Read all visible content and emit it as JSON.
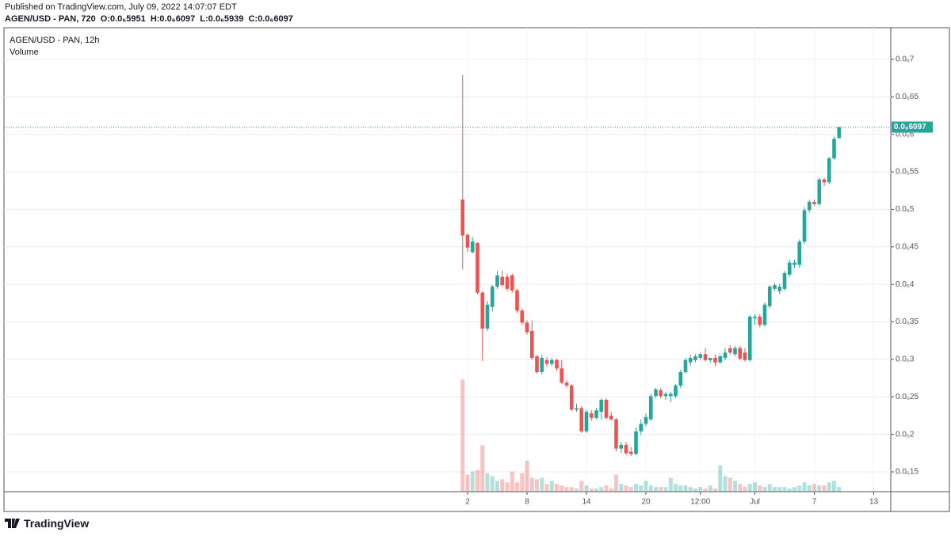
{
  "header": {
    "published": "Published on TradingView.com, July 09, 2022 14:07:07 EDT",
    "symbol": "AGEN/USD - PAN, 720",
    "ohlc": [
      "O:0.0₆5951",
      "H:0.0₆6097",
      "L:0.0₆5939",
      "C:0.0₆6097"
    ]
  },
  "footer": {
    "brand": "TradingView"
  },
  "chart_data": {
    "type": "candlestick",
    "title": "AGEN/USD - PAN, 12h",
    "x": [
      1.5,
      2,
      2.5,
      3,
      3.5,
      4,
      4.5,
      5,
      5.5,
      6,
      6.5,
      7,
      7.5,
      8,
      8.5,
      9,
      9.5,
      10,
      10.5,
      11,
      11.5,
      12,
      12.5,
      13,
      13.5,
      14,
      14.5,
      15,
      15.5,
      16,
      16.5,
      17,
      17.5,
      18,
      18.5,
      19,
      19.5,
      20,
      20.5,
      21,
      21.5,
      22,
      22.5,
      23,
      23.5,
      24,
      24.5,
      25,
      25.5,
      26,
      26.5,
      27,
      27.5,
      28,
      28.5,
      29,
      29.5,
      30,
      30.5,
      31,
      31.5,
      32,
      32.5,
      33,
      33.5,
      34,
      34.5,
      35,
      35.5,
      36,
      36.5,
      37,
      37.5,
      38,
      38.5,
      39,
      39.5
    ],
    "open": [
      5.13e-07,
      4.66e-07,
      4.43e-07,
      4.55e-07,
      3.89e-07,
      3.41e-07,
      3.7e-07,
      3.97e-07,
      4.1e-07,
      4.1e-07,
      4.12e-07,
      3.92e-07,
      3.65e-07,
      3.49e-07,
      3.38e-07,
      3.04e-07,
      2.83e-07,
      2.99e-07,
      2.94e-07,
      2.99e-07,
      2.88e-07,
      2.69e-07,
      2.65e-07,
      2.33e-07,
      2.35e-07,
      2.04e-07,
      2.28e-07,
      2.22e-07,
      2.3e-07,
      2.46e-07,
      2.25e-07,
      2.2e-07,
      1.81e-07,
      1.86e-07,
      1.77e-07,
      1.74e-07,
      2.04e-07,
      2.14e-07,
      2.2e-07,
      2.51e-07,
      2.59e-07,
      2.51e-07,
      2.51e-07,
      2.51e-07,
      2.65e-07,
      2.83e-07,
      2.96e-07,
      2.99e-07,
      3.02e-07,
      3.07e-07,
      2.99e-07,
      3.02e-07,
      2.96e-07,
      3.02e-07,
      3.15e-07,
      3.07e-07,
      3.15e-07,
      3.09e-07,
      2.99e-07,
      3.55e-07,
      3.57e-07,
      3.46e-07,
      3.71e-07,
      3.94e-07,
      3.91e-07,
      3.94e-07,
      4.13e-07,
      4.26e-07,
      4.26e-07,
      4.57e-07,
      4.99e-07,
      5.1e-07,
      5.07e-07,
      5.4e-07,
      5.36e-07,
      5.68e-07,
      5.951e-07
    ],
    "high": [
      6.79e-07,
      4.68e-07,
      4.63e-07,
      4.56e-07,
      3.91e-07,
      3.78e-07,
      3.99e-07,
      4.18e-07,
      4.18e-07,
      4.14e-07,
      4.14e-07,
      3.94e-07,
      3.68e-07,
      3.52e-07,
      3.52e-07,
      3.06e-07,
      3.06e-07,
      3.03e-07,
      3.02e-07,
      3.01e-07,
      2.99e-07,
      2.72e-07,
      2.67e-07,
      2.41e-07,
      2.38e-07,
      2.33e-07,
      2.32e-07,
      2.35e-07,
      2.48e-07,
      2.48e-07,
      2.3e-07,
      2.22e-07,
      1.9e-07,
      1.9e-07,
      1.83e-07,
      2.09e-07,
      2.2e-07,
      2.28e-07,
      2.54e-07,
      2.62e-07,
      2.62e-07,
      2.57e-07,
      2.57e-07,
      2.67e-07,
      2.86e-07,
      3.02e-07,
      3.06e-07,
      3.07e-07,
      3.09e-07,
      3.15e-07,
      3.02e-07,
      3.06e-07,
      3.07e-07,
      3.15e-07,
      3.19e-07,
      3.18e-07,
      3.18e-07,
      3.15e-07,
      3.59e-07,
      3.6e-07,
      3.6e-07,
      3.76e-07,
      3.99e-07,
      4.02e-07,
      4.01e-07,
      4.18e-07,
      4.33e-07,
      4.33e-07,
      4.6e-07,
      5.03e-07,
      5.13e-07,
      5.13e-07,
      5.42e-07,
      5.42e-07,
      5.7e-07,
      5.97e-07,
      6.097e-07
    ],
    "low": [
      4.2e-07,
      4.43e-07,
      4.41e-07,
      3.87e-07,
      2.98e-07,
      3.38e-07,
      3.64e-07,
      3.94e-07,
      3.97e-07,
      3.91e-07,
      3.89e-07,
      3.62e-07,
      3.46e-07,
      3.33e-07,
      2.99e-07,
      2.81e-07,
      2.8e-07,
      2.9e-07,
      2.91e-07,
      2.85e-07,
      2.67e-07,
      2.62e-07,
      2.31e-07,
      2.3e-07,
      2.02e-07,
      2.02e-07,
      2.18e-07,
      2.2e-07,
      2.2e-07,
      2.2e-07,
      2.18e-07,
      1.77e-07,
      1.75e-07,
      1.72e-07,
      1.71e-07,
      1.72e-07,
      1.99e-07,
      2.11e-07,
      2.18e-07,
      2.49e-07,
      2.48e-07,
      2.46e-07,
      2.43e-07,
      2.49e-07,
      2.62e-07,
      2.81e-07,
      2.91e-07,
      2.96e-07,
      2.99e-07,
      2.97e-07,
      2.96e-07,
      2.91e-07,
      2.94e-07,
      2.99e-07,
      3.06e-07,
      3.04e-07,
      2.99e-07,
      2.97e-07,
      2.97e-07,
      3.46e-07,
      3.43e-07,
      3.44e-07,
      3.68e-07,
      3.91e-07,
      3.87e-07,
      3.91e-07,
      4.1e-07,
      4.22e-07,
      4.22e-07,
      4.54e-07,
      4.96e-07,
      5.05e-07,
      5.05e-07,
      5.31e-07,
      5.34e-07,
      5.66e-07,
      5.939e-07
    ],
    "close": [
      4.65e-07,
      4.49e-07,
      4.57e-07,
      3.89e-07,
      3.41e-07,
      3.73e-07,
      3.97e-07,
      4.12e-07,
      3.99e-07,
      3.94e-07,
      3.92e-07,
      3.65e-07,
      3.49e-07,
      3.36e-07,
      3.02e-07,
      2.83e-07,
      3.02e-07,
      2.94e-07,
      2.99e-07,
      2.88e-07,
      2.69e-07,
      2.65e-07,
      2.33e-07,
      2.35e-07,
      2.04e-07,
      2.3e-07,
      2.22e-07,
      2.32e-07,
      2.46e-07,
      2.22e-07,
      2.2e-07,
      1.81e-07,
      1.86e-07,
      1.75e-07,
      1.74e-07,
      2.04e-07,
      2.14e-07,
      2.23e-07,
      2.51e-07,
      2.6e-07,
      2.51e-07,
      2.54e-07,
      2.54e-07,
      2.65e-07,
      2.83e-07,
      2.99e-07,
      3.02e-07,
      3.04e-07,
      3.07e-07,
      2.99e-07,
      3.02e-07,
      2.96e-07,
      3.04e-07,
      3.09e-07,
      3.09e-07,
      3.15e-07,
      3.01e-07,
      2.99e-07,
      3.57e-07,
      3.57e-07,
      3.46e-07,
      3.73e-07,
      3.97e-07,
      3.99e-07,
      3.97e-07,
      4.15e-07,
      4.29e-07,
      4.29e-07,
      4.57e-07,
      4.99e-07,
      5.1e-07,
      5.07e-07,
      5.4e-07,
      5.36e-07,
      5.68e-07,
      5.94e-07,
      6.097e-07
    ],
    "up_color": "#26a69a",
    "down_color": "#ef5350",
    "volume": {
      "name": "Volume",
      "values": [
        145,
        22,
        26,
        28,
        60,
        24,
        20,
        14,
        16,
        12,
        26,
        12,
        24,
        40,
        18,
        16,
        18,
        10,
        14,
        10,
        8,
        6,
        6,
        4,
        14,
        8,
        4,
        4,
        6,
        8,
        4,
        22,
        10,
        8,
        6,
        10,
        8,
        14,
        8,
        6,
        6,
        6,
        18,
        10,
        8,
        8,
        6,
        4,
        6,
        4,
        8,
        4,
        34,
        20,
        18,
        14,
        10,
        6,
        10,
        12,
        8,
        6,
        10,
        6,
        6,
        6,
        4,
        6,
        8,
        12,
        8,
        10,
        8,
        8,
        12,
        14,
        6
      ],
      "lim": [
        0,
        600
      ]
    },
    "last_price": {
      "value": 6.097e-07,
      "label": "0.0₆6097"
    },
    "xlim": [
      -44.8,
      44.72
    ],
    "xticks": [
      2,
      8,
      14,
      20,
      {
        "value": 25.5,
        "label": "12:00"
      },
      {
        "value": 31,
        "label": "Jul"
      },
      {
        "value": 37,
        "label": "7"
      },
      {
        "value": 43,
        "label": "13"
      }
    ],
    "ylim": [
      1.236e-07,
      7.422e-07
    ],
    "yticks": [
      {
        "value": 1.5e-07,
        "label": "0.0₆15"
      },
      {
        "value": 2e-07,
        "label": "0.0₆2"
      },
      {
        "value": 2.5e-07,
        "label": "0.0₆25"
      },
      {
        "value": 3e-07,
        "label": "0.0₆3"
      },
      {
        "value": 3.5e-07,
        "label": "0.0₆35"
      },
      {
        "value": 4e-07,
        "label": "0.0₆4"
      },
      {
        "value": 4.5e-07,
        "label": "0.0₆45"
      },
      {
        "value": 5e-07,
        "label": "0.0₆5"
      },
      {
        "value": 5.5e-07,
        "label": "0.0₆55"
      },
      {
        "value": 6e-07,
        "label": "0.0₆6"
      },
      {
        "value": 6.5e-07,
        "label": "0.0₆65"
      },
      {
        "value": 7e-07,
        "label": "0.0₆7"
      }
    ],
    "grid": true
  }
}
